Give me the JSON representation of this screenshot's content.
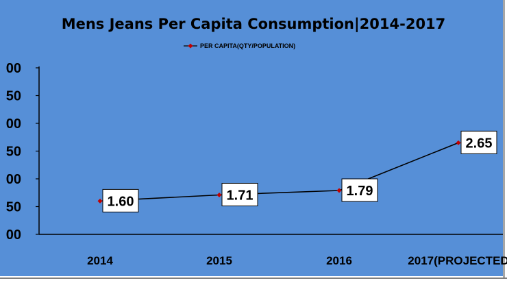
{
  "chart_data": {
    "type": "line",
    "title": "Mens Jeans Per Capita Consumption|2014-2017",
    "categories": [
      "2014",
      "2015",
      "2016",
      "2017(PROJECTED"
    ],
    "series": [
      {
        "name": "PER CAPITA(QTY/POPULATION)",
        "values": [
          1.6,
          1.71,
          1.79,
          2.65
        ],
        "labels": [
          "1.60",
          "1.71",
          "1.79",
          "2.65"
        ]
      }
    ],
    "ylim": [
      1.0,
      4.0
    ],
    "ytick_labels": [
      "00",
      "50",
      "00",
      "50",
      "00",
      "50",
      "00"
    ],
    "legend_position": "top-center",
    "grid": false,
    "colors": {
      "plot_background": "#568fd7",
      "line": "#000000",
      "marker": "#c00000",
      "label_box": "#ffffff"
    }
  }
}
